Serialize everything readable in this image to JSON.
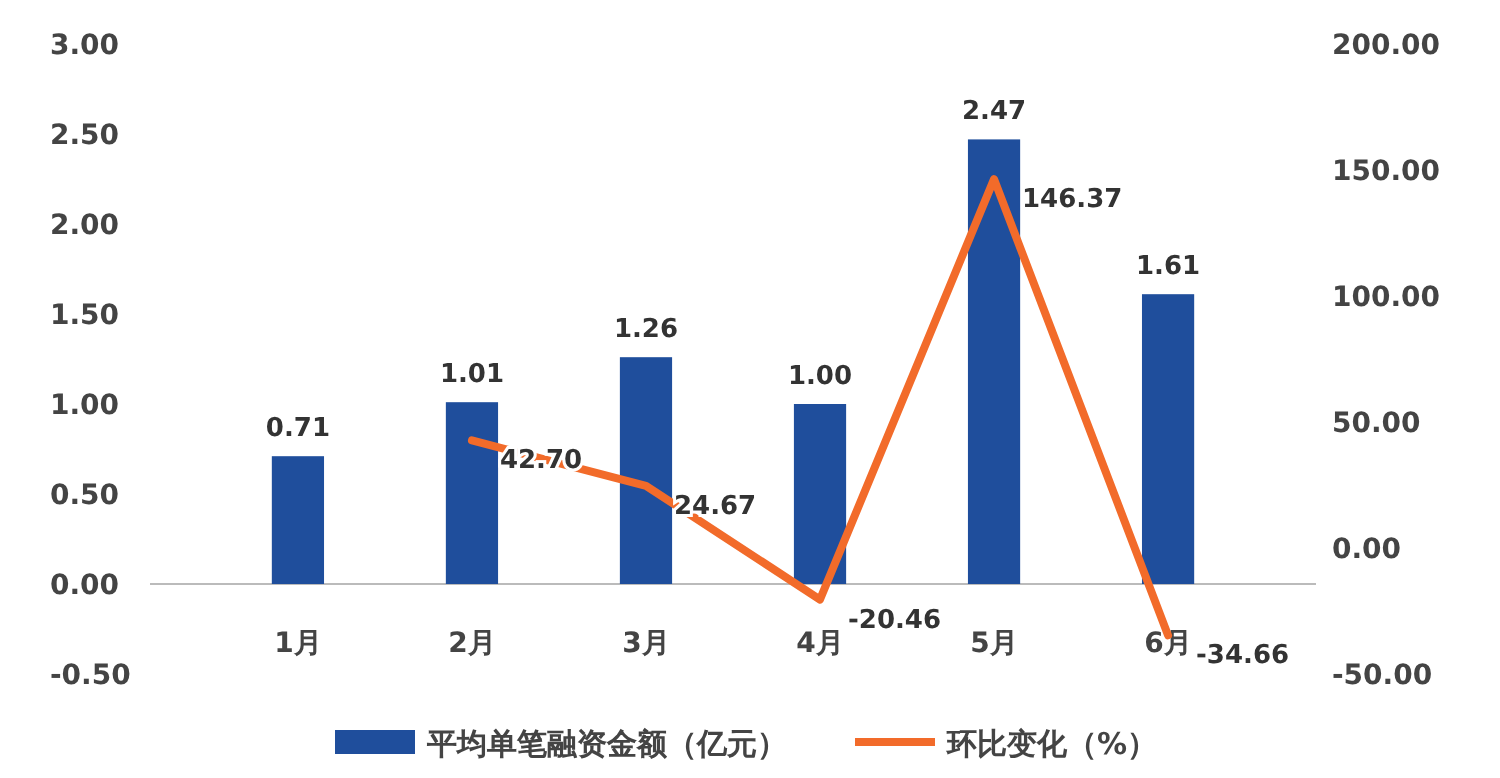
{
  "chart_data": {
    "type": "bar",
    "categories": [
      "1月",
      "2月",
      "3月",
      "4月",
      "5月",
      "6月"
    ],
    "series": [
      {
        "name": "平均单笔融资金额（亿元）",
        "color": "#1f4e9c",
        "values": [
          0.71,
          1.01,
          1.26,
          1.0,
          2.47,
          1.61
        ],
        "value_labels": [
          "0.71",
          "1.01",
          "1.26",
          "1.00",
          "2.47",
          "1.61"
        ]
      },
      {
        "name": "环比变化（%）",
        "type": "line",
        "axis": "y2",
        "color": "#f26b2a",
        "values": [
          null,
          42.7,
          24.67,
          -20.46,
          146.37,
          -34.66
        ],
        "value_labels": [
          null,
          "42.70",
          "24.67",
          "-20.46",
          "146.37",
          "-34.66"
        ]
      }
    ],
    "ylim": [
      -0.5,
      3.0
    ],
    "yticks": [
      {
        "value": -0.5,
        "label": "-0.50"
      },
      {
        "value": 0,
        "label": "0.00"
      },
      {
        "value": 0.5,
        "label": "0.50"
      },
      {
        "value": 1,
        "label": "1.00"
      },
      {
        "value": 1.5,
        "label": "1.50"
      },
      {
        "value": 2,
        "label": "2.00"
      },
      {
        "value": 2.5,
        "label": "2.50"
      },
      {
        "value": 3,
        "label": "3.00"
      }
    ],
    "y2lim": [
      -50,
      200
    ],
    "y2ticks": [
      {
        "value": -50,
        "label": "-50.00"
      },
      {
        "value": 0,
        "label": "0.00"
      },
      {
        "value": 50,
        "label": "50.00"
      },
      {
        "value": 100,
        "label": "100.00"
      },
      {
        "value": 150,
        "label": "150.00"
      },
      {
        "value": 200,
        "label": "200.00"
      }
    ],
    "grid": false,
    "legend": "bottom",
    "marker": "none",
    "line_style": "solid"
  }
}
